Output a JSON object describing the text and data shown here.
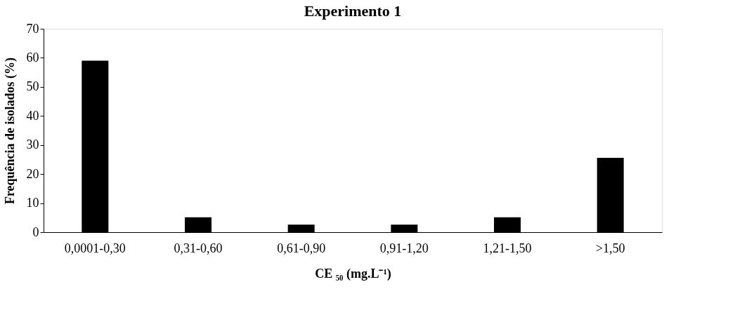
{
  "chart_data": {
    "type": "bar",
    "title": "Experimento 1",
    "xlabel": "CE ₅₀ (mg.L⁻¹)",
    "ylabel": "Frequência de isolados (%)",
    "categories": [
      "0,0001-0,30",
      "0,31-0,60",
      "0,61-0,90",
      "0,91-1,20",
      "1,21-1,50",
      ">1,50"
    ],
    "values": [
      59.0,
      5.1,
      2.6,
      2.6,
      5.1,
      25.6
    ],
    "color": "#000000",
    "ylim": [
      0,
      70
    ],
    "yticks": [
      0,
      10,
      20,
      30,
      40,
      50,
      60,
      70
    ],
    "grid": false
  }
}
